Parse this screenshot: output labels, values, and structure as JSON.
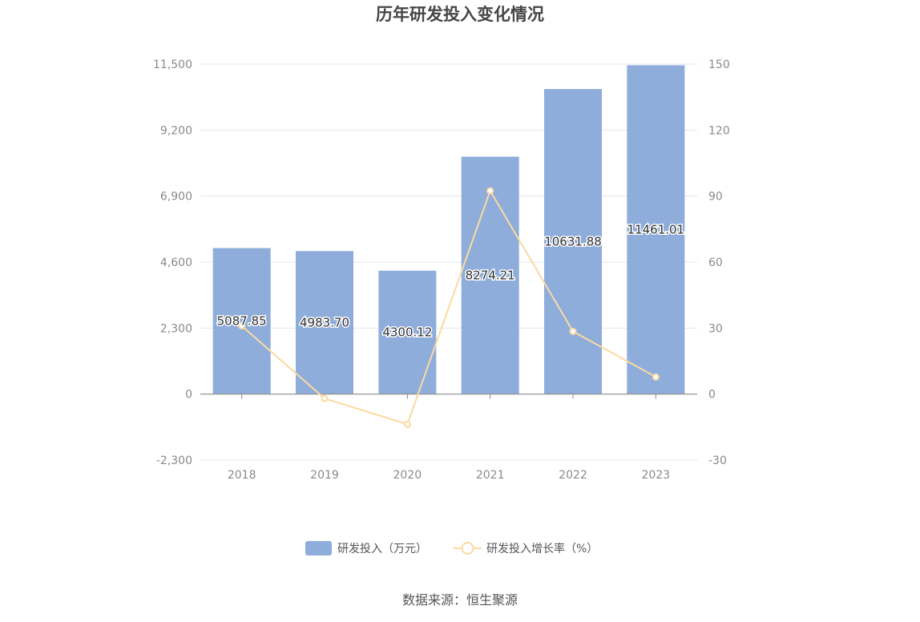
{
  "chart_data": {
    "type": "bar",
    "title": "历年研发投入变化情况",
    "categories": [
      "2018",
      "2019",
      "2020",
      "2021",
      "2022",
      "2023"
    ],
    "series": [
      {
        "name": "研发投入（万元）",
        "type": "bar",
        "axis": "left",
        "color": "#8eaddb",
        "values": [
          5087.85,
          4983.7,
          4300.12,
          8274.21,
          10631.88,
          11461.01
        ],
        "labels": [
          "5087.85",
          "4983.70",
          "4300.12",
          "8274.21",
          "10631.88",
          "11461.01"
        ]
      },
      {
        "name": "研发投入增长率（%）",
        "type": "line",
        "axis": "right",
        "color": "#fcd9a1",
        "values": [
          31.0,
          -2.0,
          -13.7,
          92.4,
          28.5,
          7.8
        ]
      }
    ],
    "y_left": {
      "ticks": [
        -2300,
        0,
        2300,
        4600,
        6900,
        9200,
        11500
      ],
      "tick_labels": [
        "-2,300",
        "0",
        "2,300",
        "4,600",
        "6,900",
        "9,200",
        "11,500"
      ],
      "ylim": [
        -2300,
        11500
      ]
    },
    "y_right": {
      "ticks": [
        -30,
        0,
        30,
        60,
        90,
        120,
        150
      ],
      "tick_labels": [
        "-30",
        "0",
        "30",
        "60",
        "90",
        "120",
        "150"
      ],
      "ylim": [
        -30,
        150
      ]
    },
    "grid": true,
    "legend_position": "bottom-center"
  },
  "source_text": "数据来源：恒生聚源"
}
